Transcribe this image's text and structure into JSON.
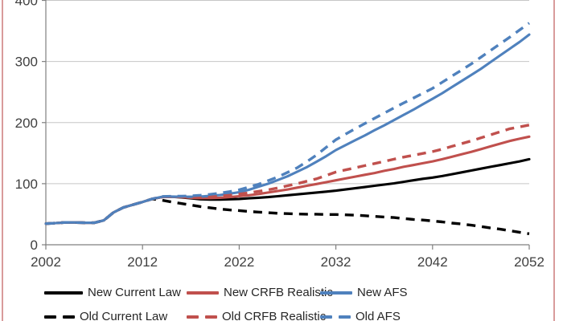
{
  "chart_data": {
    "type": "line",
    "title": "",
    "xlabel": "",
    "ylabel": "",
    "xlim": [
      2002,
      2052
    ],
    "ylim": [
      0,
      400
    ],
    "xticks": [
      2002,
      2012,
      2022,
      2032,
      2042,
      2052
    ],
    "yticks": [
      0,
      100,
      200,
      300,
      400
    ],
    "grid": true,
    "legend_position": "bottom",
    "x": [
      2002,
      2003,
      2004,
      2005,
      2006,
      2007,
      2008,
      2009,
      2010,
      2011,
      2012,
      2013,
      2014,
      2015,
      2016,
      2017,
      2018,
      2019,
      2020,
      2021,
      2022,
      2023,
      2024,
      2025,
      2026,
      2027,
      2028,
      2029,
      2030,
      2031,
      2032,
      2033,
      2034,
      2035,
      2036,
      2037,
      2038,
      2039,
      2040,
      2041,
      2042,
      2043,
      2044,
      2045,
      2046,
      2047,
      2048,
      2049,
      2050,
      2051,
      2052
    ],
    "series": [
      {
        "name": "New Current Law",
        "color": "#000000",
        "style": "solid",
        "values": [
          34.5,
          35.5,
          36.5,
          36.5,
          36,
          36,
          40,
          53,
          61,
          65.5,
          70,
          75,
          78,
          78.5,
          77.5,
          76,
          74.5,
          74,
          74,
          74.5,
          75,
          76,
          77,
          78,
          79.5,
          81,
          82.5,
          84,
          85.5,
          87,
          88.5,
          90.5,
          92.5,
          94.5,
          96.5,
          98.5,
          100.5,
          103,
          105.5,
          108,
          110,
          112.5,
          115.5,
          118.5,
          121.5,
          124.5,
          127.5,
          130.5,
          133.5,
          136.5,
          140
        ]
      },
      {
        "name": "New CRFB Realistic",
        "color": "#C0504D",
        "style": "solid",
        "values": [
          34.5,
          35.5,
          36.5,
          36.5,
          36,
          36,
          40,
          53,
          61,
          65.5,
          70,
          75,
          78,
          78.5,
          78,
          77,
          76.5,
          76.5,
          77,
          78,
          79.5,
          81,
          83,
          85.5,
          88,
          90.5,
          93.5,
          96.5,
          99.5,
          102.5,
          105.5,
          108.5,
          111.5,
          114.5,
          117.5,
          121,
          124,
          127.5,
          130.5,
          133.5,
          136.5,
          140,
          144,
          148,
          152,
          156.5,
          161,
          165.5,
          170,
          173.5,
          177
        ]
      },
      {
        "name": "New AFS",
        "color": "#4F81BD",
        "style": "solid",
        "values": [
          34.5,
          35.5,
          36.5,
          36.5,
          36,
          36,
          40,
          53,
          61,
          65.5,
          70,
          75,
          78.5,
          79,
          78.5,
          78.5,
          79,
          80,
          81.5,
          83.5,
          86,
          90,
          95,
          100,
          106,
          112,
          119.5,
          127,
          136,
          145,
          155,
          163,
          171,
          179,
          187.5,
          195.5,
          204,
          212.5,
          221,
          230,
          239,
          248,
          258,
          268,
          278,
          288,
          299,
          310,
          321,
          332,
          344
        ]
      },
      {
        "name": "Old Current Law",
        "color": "#000000",
        "style": "dashed",
        "values": [
          34.5,
          35.5,
          36.5,
          36.5,
          36,
          36,
          40,
          53,
          61,
          65.5,
          70,
          75,
          73,
          70,
          67.5,
          65,
          62.5,
          60.5,
          58.5,
          57,
          56,
          54.5,
          53.5,
          52.5,
          51.5,
          51,
          50.5,
          50,
          50,
          49.5,
          49.5,
          49,
          48.5,
          47.5,
          46.5,
          45.5,
          44.5,
          43,
          41.5,
          40.5,
          39,
          37.5,
          35.5,
          34,
          32,
          30,
          27.5,
          25.5,
          23,
          20.5,
          18
        ]
      },
      {
        "name": "Old CRFB Realistic",
        "color": "#C0504D",
        "style": "dashed",
        "values": [
          34.5,
          35.5,
          36.5,
          36.5,
          36,
          36,
          40,
          53,
          61,
          65.5,
          70,
          75,
          78.5,
          79,
          78.5,
          78,
          78,
          78.5,
          79.5,
          81,
          83,
          85,
          87.5,
          90,
          93,
          96.5,
          100,
          104,
          108,
          113.5,
          119,
          122.5,
          126,
          129.5,
          133,
          136.5,
          140,
          143.5,
          146.5,
          149.5,
          152.5,
          156.5,
          161,
          165.5,
          170,
          175,
          180,
          185,
          190,
          193,
          196
        ]
      },
      {
        "name": "Old AFS",
        "color": "#4F81BD",
        "style": "dashed",
        "values": [
          34.5,
          35.5,
          36.5,
          36.5,
          36,
          36,
          40,
          53,
          61,
          65.5,
          70,
          75,
          79,
          79.5,
          79.5,
          80,
          81,
          82.5,
          84.5,
          87,
          90,
          94.5,
          99,
          105,
          111,
          118.5,
          126,
          136,
          147,
          159.5,
          172,
          181,
          190,
          198.5,
          207,
          215.5,
          224,
          232,
          240,
          248,
          256,
          266,
          276,
          286,
          296,
          307,
          318,
          329,
          340,
          351.5,
          363
        ]
      }
    ],
    "legend_rows": [
      [
        "New Current Law",
        "New CRFB Realistic",
        "New AFS"
      ],
      [
        "Old Current Law",
        "Old CRFB Realistic",
        "Old AFS"
      ]
    ]
  },
  "colors": {
    "frame_border": "#D99B9B",
    "gridline": "#C6C6C6",
    "axis": "#808080",
    "tick_label": "#3F3F3F",
    "legend_text": "#262626",
    "background": "#FFFFFF",
    "series_black": "#000000",
    "series_red": "#C0504D",
    "series_blue": "#4F81BD"
  }
}
